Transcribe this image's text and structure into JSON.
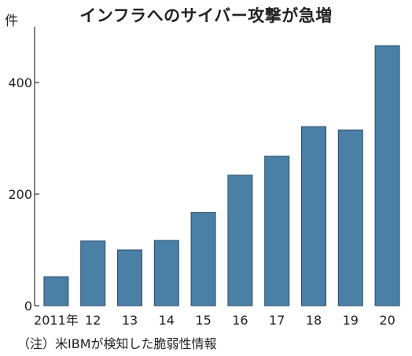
{
  "chart_data": {
    "type": "bar",
    "title": "インフラへのサイバー攻撃が急増",
    "unit": "件",
    "categories": [
      "2011年",
      "12",
      "13",
      "14",
      "15",
      "16",
      "17",
      "18",
      "19",
      "20"
    ],
    "values": [
      52,
      116,
      100,
      117,
      167,
      234,
      268,
      321,
      315,
      466
    ],
    "ylim": [
      0,
      500
    ],
    "yticks": [
      0,
      200,
      400
    ],
    "grid": false,
    "bar_color": "#4a7fa6",
    "bar_edge_color": "#2c4f68",
    "note": "（注）米IBMが検知した脆弱性情報"
  }
}
